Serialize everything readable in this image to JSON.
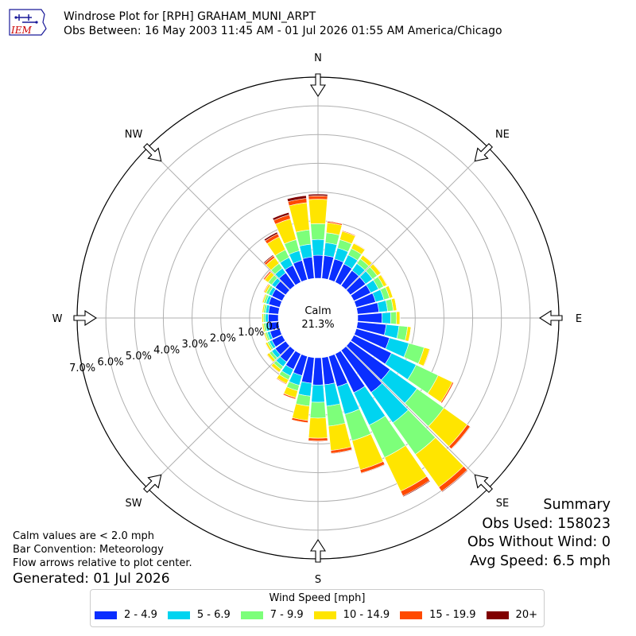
{
  "header": {
    "title": "Windrose Plot for [RPH] GRAHAM_MUNI_ARPT",
    "subtitle": "Obs Between: 16 May 2003 11:45 AM - 01 Jul 2026 01:55 AM America/Chicago",
    "logo_text": "IEM"
  },
  "notes": {
    "calm": "Calm values are < 2.0 mph",
    "convention": "Bar Convention: Meteorology",
    "arrows": "Flow arrows relative to plot center.",
    "generated": "Generated: 01 Jul 2026"
  },
  "summary": {
    "title": "Summary",
    "obs_used": "Obs Used: 158023",
    "obs_without_wind": "Obs Without Wind: 0",
    "avg_speed": "Avg Speed: 6.5 mph"
  },
  "legend": {
    "title": "Wind Speed [mph]",
    "items": [
      {
        "label": "2 - 4.9",
        "color": "#0a2eff"
      },
      {
        "label": "5 - 6.9",
        "color": "#00d4f0"
      },
      {
        "label": "7 - 9.9",
        "color": "#7dff7a"
      },
      {
        "label": "10 - 14.9",
        "color": "#ffe500"
      },
      {
        "label": "15 - 19.9",
        "color": "#ff4a00"
      },
      {
        "label": "20+",
        "color": "#800000"
      }
    ]
  },
  "chart_data": {
    "type": "windrose",
    "calm": {
      "label": "Calm",
      "value": "21.3%"
    },
    "radial_ticks": [
      "0.0%",
      "1.0%",
      "2.0%",
      "3.0%",
      "4.0%",
      "5.0%",
      "6.0%",
      "7.0%"
    ],
    "radial_max": 7.0,
    "compass_labels": [
      "N",
      "NE",
      "E",
      "SE",
      "S",
      "SW",
      "W",
      "NW"
    ],
    "bin_width_deg": 10,
    "speed_bins": [
      "2 - 4.9",
      "5 - 6.9",
      "7 - 9.9",
      "10 - 14.9",
      "15 - 19.9",
      "20+"
    ],
    "directions_deg": [
      0,
      10,
      20,
      30,
      40,
      50,
      60,
      70,
      80,
      90,
      100,
      110,
      120,
      130,
      140,
      150,
      160,
      170,
      180,
      190,
      200,
      210,
      220,
      230,
      240,
      250,
      260,
      270,
      280,
      290,
      300,
      310,
      320,
      330,
      340,
      350
    ],
    "series": [
      {
        "name": "2 - 4.9",
        "values": [
          0.8,
          0.8,
          0.75,
          0.7,
          0.65,
          0.65,
          0.65,
          0.7,
          0.75,
          0.85,
          1.0,
          1.2,
          1.45,
          1.7,
          1.8,
          1.5,
          1.1,
          0.95,
          0.95,
          0.9,
          0.7,
          0.6,
          0.5,
          0.45,
          0.4,
          0.35,
          0.35,
          0.35,
          0.35,
          0.4,
          0.4,
          0.45,
          0.55,
          0.65,
          0.7,
          0.75
        ]
      },
      {
        "name": "5 - 6.9",
        "values": [
          0.55,
          0.45,
          0.4,
          0.35,
          0.3,
          0.3,
          0.3,
          0.3,
          0.3,
          0.3,
          0.45,
          0.7,
          0.95,
          1.15,
          1.3,
          1.25,
          1.0,
          0.75,
          0.6,
          0.45,
          0.35,
          0.25,
          0.2,
          0.15,
          0.1,
          0.1,
          0.1,
          0.1,
          0.1,
          0.1,
          0.12,
          0.15,
          0.2,
          0.3,
          0.35,
          0.45
        ]
      },
      {
        "name": "7 - 9.9",
        "values": [
          0.55,
          0.35,
          0.3,
          0.25,
          0.2,
          0.2,
          0.2,
          0.2,
          0.2,
          0.2,
          0.3,
          0.55,
          0.85,
          1.15,
          1.35,
          1.25,
          0.95,
          0.7,
          0.55,
          0.35,
          0.2,
          0.15,
          0.12,
          0.1,
          0.07,
          0.07,
          0.07,
          0.07,
          0.07,
          0.08,
          0.1,
          0.15,
          0.2,
          0.3,
          0.4,
          0.5
        ]
      },
      {
        "name": "10 - 14.9",
        "values": [
          0.85,
          0.35,
          0.3,
          0.2,
          0.15,
          0.15,
          0.12,
          0.12,
          0.12,
          0.12,
          0.12,
          0.2,
          0.55,
          1.0,
          1.4,
          1.3,
          1.05,
          0.85,
          0.7,
          0.5,
          0.25,
          0.15,
          0.12,
          0.1,
          0.07,
          0.05,
          0.05,
          0.05,
          0.05,
          0.05,
          0.07,
          0.15,
          0.25,
          0.5,
          0.75,
          0.95
        ]
      },
      {
        "name": "15 - 19.9",
        "values": [
          0.12,
          0.05,
          0.03,
          0.02,
          0.02,
          0.02,
          0.02,
          0.01,
          0.01,
          0.01,
          0.01,
          0.02,
          0.05,
          0.12,
          0.18,
          0.18,
          0.12,
          0.1,
          0.1,
          0.08,
          0.05,
          0.03,
          0.02,
          0.02,
          0.02,
          0.02,
          0.01,
          0.01,
          0.01,
          0.02,
          0.03,
          0.05,
          0.08,
          0.12,
          0.15,
          0.15
        ]
      },
      {
        "name": "20+",
        "values": [
          0.06,
          0.02,
          0.01,
          0.01,
          0,
          0,
          0,
          0,
          0,
          0,
          0,
          0,
          0.01,
          0.02,
          0.03,
          0.03,
          0.02,
          0.02,
          0.02,
          0.01,
          0.01,
          0.01,
          0,
          0,
          0,
          0,
          0,
          0,
          0,
          0.01,
          0.01,
          0.02,
          0.04,
          0.06,
          0.08,
          0.1
        ]
      }
    ]
  }
}
